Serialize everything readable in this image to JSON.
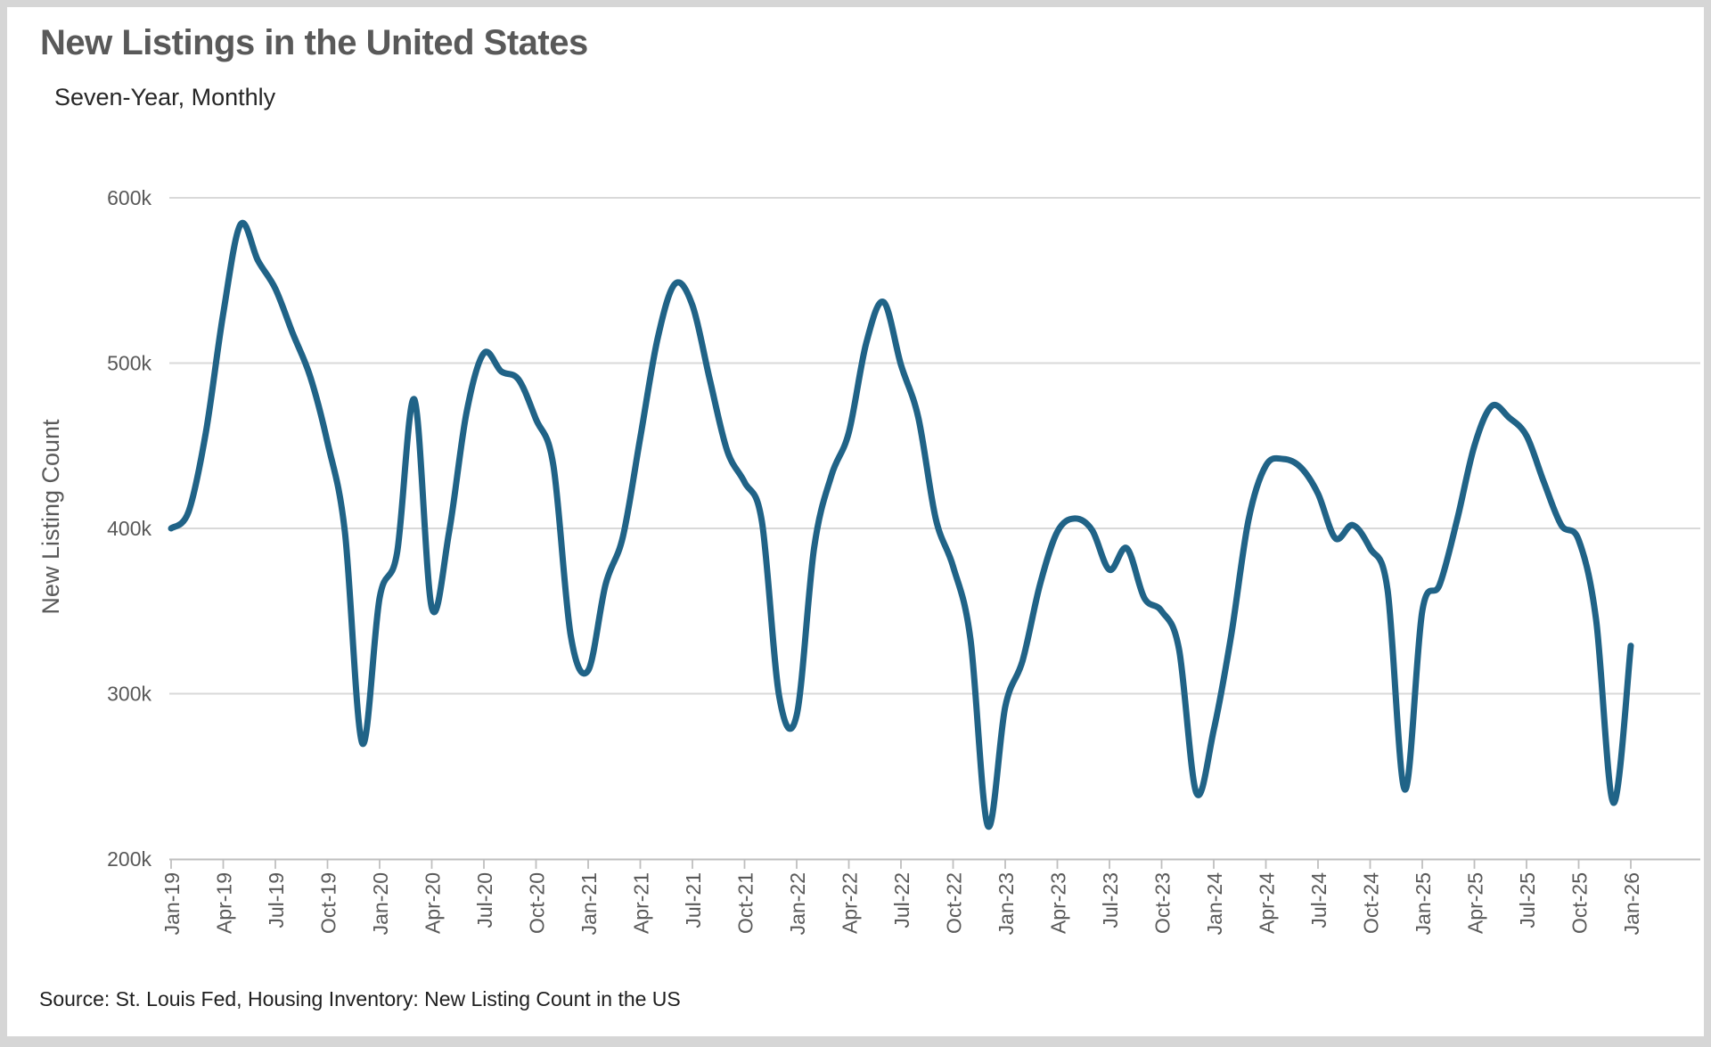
{
  "header": {
    "title": "New Listings in the United States",
    "subtitle": "Seven-Year, Monthly"
  },
  "footer": {
    "source": "Source: St. Louis Fed, Housing Inventory: New Listing Count in the US"
  },
  "colors": {
    "line": "#206387",
    "gridline": "#d9d9d9",
    "axis": "#bfbfbf",
    "tick_text": "#595959",
    "title_text": "#595959",
    "card_bg": "#ffffff",
    "page_bg": "#d6d6d6"
  },
  "chart_data": {
    "type": "line",
    "title": "New Listings in the United States",
    "subtitle": "Seven-Year, Monthly",
    "xlabel": "",
    "ylabel": "New Listing Count",
    "ylim": [
      200000,
      600000
    ],
    "grid": "horizontal",
    "legend_position": "none",
    "y_ticks": [
      {
        "label": "600k",
        "value": 600
      },
      {
        "label": "500k",
        "value": 500
      },
      {
        "label": "400k",
        "value": 400
      },
      {
        "label": "300k",
        "value": 300
      },
      {
        "label": "200k",
        "value": 200
      }
    ],
    "x_tick_labels": [
      "Jan-19",
      "Apr-19",
      "Jul-19",
      "Oct-19",
      "Jan-20",
      "Apr-20",
      "Jul-20",
      "Oct-20",
      "Jan-21",
      "Apr-21",
      "Jul-21",
      "Oct-21",
      "Jan-22",
      "Apr-22",
      "Jul-22",
      "Oct-22",
      "Jan-23",
      "Apr-23",
      "Jul-23",
      "Oct-23",
      "Jan-24",
      "Apr-24",
      "Jul-24",
      "Oct-24",
      "Jan-25",
      "Apr-25",
      "Jul-25",
      "Oct-25",
      "Jan-26"
    ],
    "x_tick_every_months": 3,
    "months": [
      "Jan-19",
      "Feb-19",
      "Mar-19",
      "Apr-19",
      "May-19",
      "Jun-19",
      "Jul-19",
      "Aug-19",
      "Sep-19",
      "Oct-19",
      "Nov-19",
      "Dec-19",
      "Jan-20",
      "Feb-20",
      "Mar-20",
      "Apr-20",
      "May-20",
      "Jun-20",
      "Jul-20",
      "Aug-20",
      "Sep-20",
      "Oct-20",
      "Nov-20",
      "Dec-20",
      "Jan-21",
      "Feb-21",
      "Mar-21",
      "Apr-21",
      "May-21",
      "Jun-21",
      "Jul-21",
      "Aug-21",
      "Sep-21",
      "Oct-21",
      "Nov-21",
      "Dec-21",
      "Jan-22",
      "Feb-22",
      "Mar-22",
      "Apr-22",
      "May-22",
      "Jun-22",
      "Jul-22",
      "Aug-22",
      "Sep-22",
      "Oct-22",
      "Nov-22",
      "Dec-22",
      "Jan-23",
      "Feb-23",
      "Mar-23",
      "Apr-23",
      "May-23",
      "Jun-23",
      "Jul-23",
      "Aug-23",
      "Sep-23",
      "Oct-23",
      "Nov-23",
      "Dec-23",
      "Jan-24",
      "Feb-24",
      "Mar-24",
      "Apr-24",
      "May-24",
      "Jun-24",
      "Jul-24",
      "Aug-24",
      "Sep-24",
      "Oct-24",
      "Nov-24",
      "Dec-24",
      "Jan-25",
      "Feb-25",
      "Mar-25",
      "Apr-25",
      "May-25",
      "Jun-25",
      "Jul-25",
      "Aug-25",
      "Sep-25",
      "Oct-25",
      "Nov-25",
      "Dec-25",
      "Jan-26"
    ],
    "values_thousands": [
      400,
      410,
      458,
      530,
      584,
      562,
      545,
      518,
      492,
      452,
      398,
      270,
      358,
      385,
      478,
      352,
      398,
      470,
      506,
      495,
      490,
      466,
      438,
      335,
      314,
      366,
      395,
      455,
      515,
      548,
      535,
      490,
      447,
      428,
      404,
      298,
      287,
      388,
      432,
      458,
      512,
      537,
      499,
      467,
      406,
      377,
      333,
      220,
      292,
      320,
      366,
      398,
      406,
      399,
      375,
      388,
      358,
      350,
      327,
      240,
      278,
      335,
      405,
      438,
      442,
      437,
      421,
      394,
      402,
      388,
      363,
      242,
      350,
      366,
      405,
      450,
      474,
      467,
      456,
      428,
      402,
      393,
      345,
      234,
      329
    ]
  }
}
